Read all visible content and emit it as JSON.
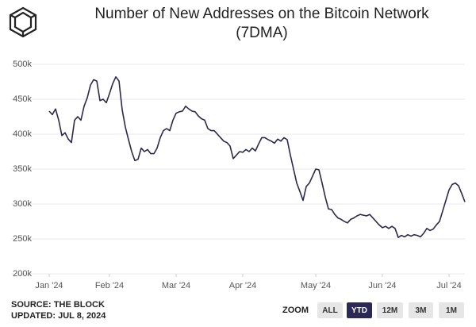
{
  "chart_data": {
    "type": "line",
    "title": "Number of New Addresses on the Bitcoin Network",
    "subtitle": "(7DMA)",
    "series": [
      {
        "name": "New Addresses",
        "color": "#2b2a4c",
        "values": [
          433000,
          428000,
          436000,
          420000,
          398000,
          402000,
          393000,
          388000,
          420000,
          425000,
          420000,
          440000,
          452000,
          470000,
          478000,
          476000,
          448000,
          450000,
          445000,
          458000,
          472000,
          482000,
          476000,
          435000,
          410000,
          392000,
          375000,
          362000,
          364000,
          380000,
          375000,
          378000,
          372000,
          372000,
          380000,
          395000,
          405000,
          408000,
          405000,
          420000,
          430000,
          432000,
          433000,
          440000,
          436000,
          433000,
          432000,
          426000,
          422000,
          420000,
          408000,
          405000,
          405000,
          400000,
          395000,
          390000,
          388000,
          383000,
          365000,
          370000,
          375000,
          374000,
          378000,
          375000,
          380000,
          376000,
          386000,
          395000,
          395000,
          392000,
          390000,
          387000,
          393000,
          390000,
          395000,
          392000,
          370000,
          350000,
          330000,
          318000,
          305000,
          325000,
          330000,
          340000,
          350000,
          349000,
          330000,
          310000,
          293000,
          292000,
          285000,
          280000,
          278000,
          275000,
          273000,
          278000,
          280000,
          283000,
          285000,
          284000,
          283000,
          285000,
          280000,
          275000,
          270000,
          266000,
          268000,
          265000,
          268000,
          265000,
          252000,
          255000,
          253000,
          256000,
          254000,
          256000,
          255000,
          253000,
          258000,
          265000,
          262000,
          264000,
          270000,
          275000,
          290000,
          305000,
          320000,
          328000,
          330000,
          326000,
          315000,
          303000
        ]
      }
    ],
    "xlim": [
      0,
      131
    ],
    "xticks": [
      {
        "value": 0,
        "label": "Jan '24"
      },
      {
        "value": 19,
        "label": "Feb '24"
      },
      {
        "value": 40,
        "label": "Mar '24"
      },
      {
        "value": 61,
        "label": "Apr '24"
      },
      {
        "value": 84,
        "label": "May '24"
      },
      {
        "value": 105,
        "label": "Jun '24"
      },
      {
        "value": 126,
        "label": "Jul '24"
      }
    ],
    "ylim": [
      200000,
      500000
    ],
    "yticks": [
      {
        "value": 200000,
        "label": "200k"
      },
      {
        "value": 250000,
        "label": "250k"
      },
      {
        "value": 300000,
        "label": "300k"
      },
      {
        "value": 350000,
        "label": "350k"
      },
      {
        "value": 400000,
        "label": "400k"
      },
      {
        "value": 450000,
        "label": "450k"
      },
      {
        "value": 500000,
        "label": "500k"
      }
    ],
    "grid": true
  },
  "footer": {
    "source": "SOURCE: THE BLOCK",
    "updated": "UPDATED: JUL 8, 2024"
  },
  "zoom": {
    "label": "ZOOM",
    "buttons": [
      "ALL",
      "YTD",
      "12M",
      "3M",
      "1M"
    ],
    "selected": 1
  }
}
